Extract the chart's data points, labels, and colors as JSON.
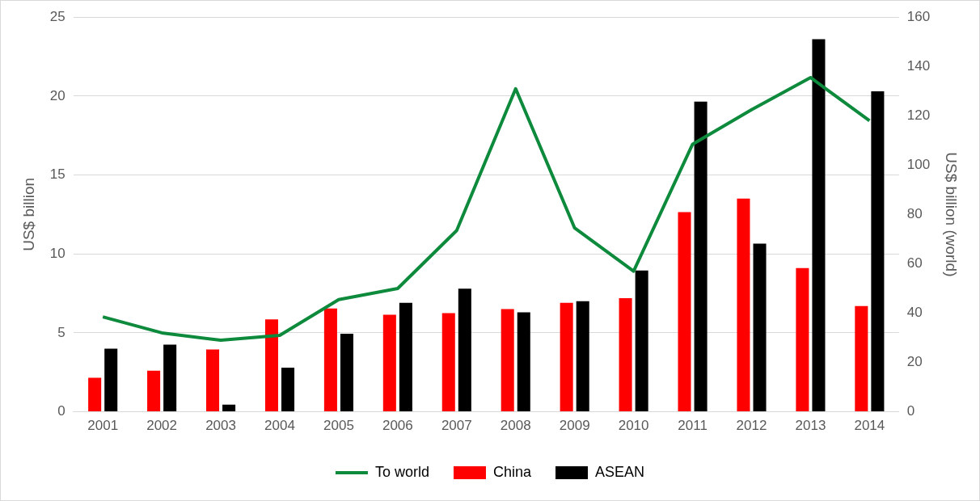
{
  "chart_data": {
    "type": "bar",
    "ylabel": "US$ billion",
    "y2label": "US$ billion (world)",
    "categories": [
      "2001",
      "2002",
      "2003",
      "2004",
      "2005",
      "2006",
      "2007",
      "2008",
      "2009",
      "2010",
      "2011",
      "2012",
      "2013",
      "2014"
    ],
    "series": [
      {
        "name": "China",
        "color": "#ff0000",
        "values": [
          2.15,
          2.6,
          3.95,
          5.85,
          6.55,
          6.15,
          6.25,
          6.5,
          6.9,
          7.2,
          12.65,
          13.5,
          9.1,
          6.7
        ]
      },
      {
        "name": "ASEAN",
        "color": "#000000",
        "values": [
          4.0,
          4.25,
          0.45,
          2.8,
          4.95,
          6.9,
          7.8,
          6.3,
          7.0,
          8.95,
          19.65,
          10.65,
          23.6,
          20.3
        ]
      },
      {
        "name": "To world",
        "type": "line",
        "axis": "y2",
        "color": "#0e8a3c",
        "values": [
          38.5,
          32,
          29,
          31,
          45.5,
          50,
          73.5,
          131,
          74.5,
          57,
          108.5,
          122.5,
          135.5,
          118
        ]
      }
    ],
    "ylim": [
      0,
      25
    ],
    "yticks": [
      0,
      5,
      10,
      15,
      20,
      25
    ],
    "y2lim": [
      0,
      160
    ],
    "y2ticks": [
      0,
      20,
      40,
      60,
      80,
      100,
      120,
      140,
      160
    ],
    "grid": "y",
    "legend": "bottom"
  }
}
